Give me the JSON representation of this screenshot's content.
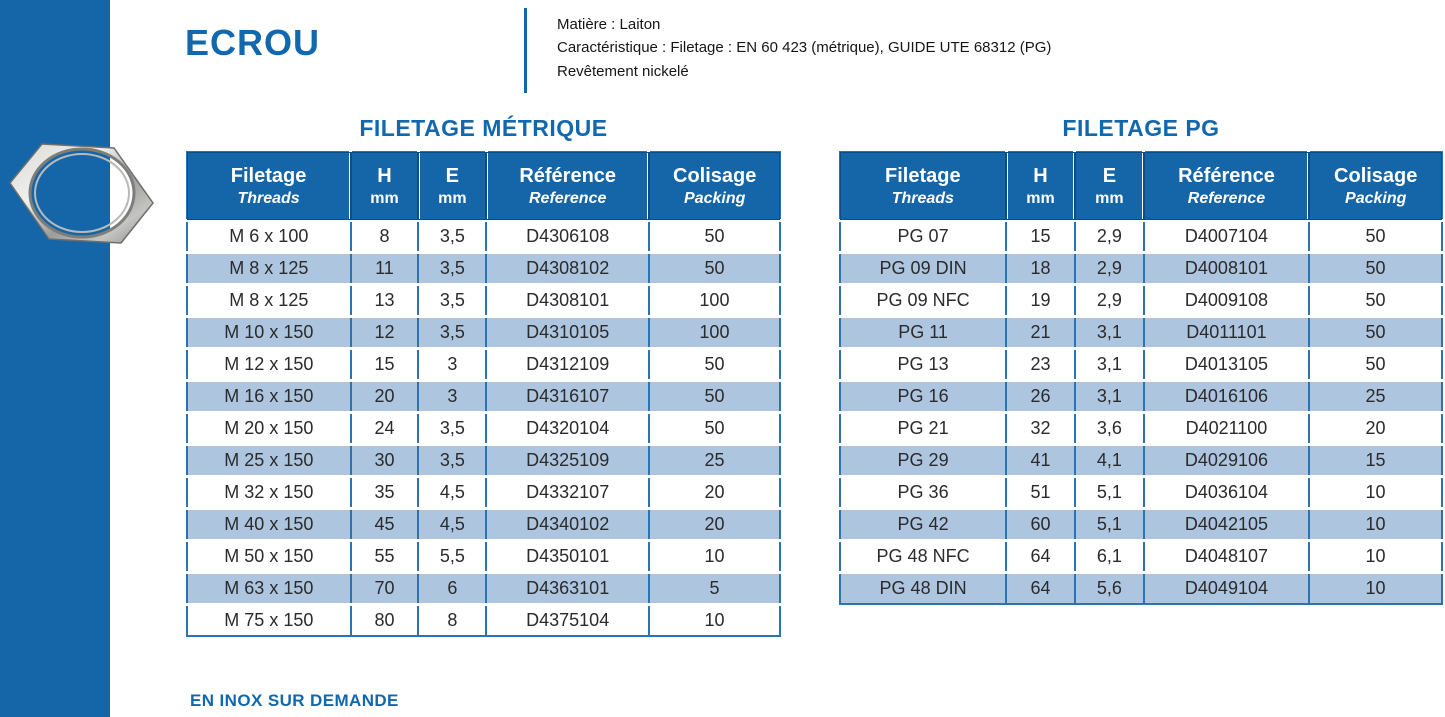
{
  "page": {
    "title": "ECROU",
    "info_lines": {
      "l1": "Matière : Laiton",
      "l2": "Caractéristique : Filetage : EN 60 423 (métrique), GUIDE UTE 68312 (PG)",
      "l3": "Revêtement nickelé"
    },
    "footnote": "EN INOX SUR DEMANDE"
  },
  "colors": {
    "brand_blue": "#1565a9",
    "stripe_blue": "#aec5e0",
    "cell_border_blue": "#2a74b4"
  },
  "icons": {
    "nut_photo": "hex-nut-photo"
  },
  "metric_table": {
    "title": "FILETAGE MÉTRIQUE",
    "headers": {
      "c1a": "Filetage",
      "c1b": "Threads",
      "c2a": "H",
      "c2b": "mm",
      "c3a": "E",
      "c3b": "mm",
      "c4a": "Référence",
      "c4b": "Reference",
      "c5a": "Colisage",
      "c5b": "Packing"
    },
    "rows": [
      [
        "M 6 x 100",
        "8",
        "3,5",
        "D4306108",
        "50"
      ],
      [
        "M 8 x 125",
        "11",
        "3,5",
        "D4308102",
        "50"
      ],
      [
        "M 8 x 125",
        "13",
        "3,5",
        "D4308101",
        "100"
      ],
      [
        "M 10 x 150",
        "12",
        "3,5",
        "D4310105",
        "100"
      ],
      [
        "M 12 x 150",
        "15",
        "3",
        "D4312109",
        "50"
      ],
      [
        "M 16 x 150",
        "20",
        "3",
        "D4316107",
        "50"
      ],
      [
        "M 20 x 150",
        "24",
        "3,5",
        "D4320104",
        "50"
      ],
      [
        "M 25 x 150",
        "30",
        "3,5",
        "D4325109",
        "25"
      ],
      [
        "M 32 x 150",
        "35",
        "4,5",
        "D4332107",
        "20"
      ],
      [
        "M 40 x 150",
        "45",
        "4,5",
        "D4340102",
        "20"
      ],
      [
        "M 50 x 150",
        "55",
        "5,5",
        "D4350101",
        "10"
      ],
      [
        "M 63 x 150",
        "70",
        "6",
        "D4363101",
        "5"
      ],
      [
        "M 75 x 150",
        "80",
        "8",
        "D4375104",
        "10"
      ]
    ]
  },
  "pg_table": {
    "title": "FILETAGE PG",
    "headers": {
      "c1a": "Filetage",
      "c1b": "Threads",
      "c2a": "H",
      "c2b": "mm",
      "c3a": "E",
      "c3b": "mm",
      "c4a": "Référence",
      "c4b": "Reference",
      "c5a": "Colisage",
      "c5b": "Packing"
    },
    "rows": [
      [
        "PG 07",
        "15",
        "2,9",
        "D4007104",
        "50"
      ],
      [
        "PG 09 DIN",
        "18",
        "2,9",
        "D4008101",
        "50"
      ],
      [
        "PG 09 NFC",
        "19",
        "2,9",
        "D4009108",
        "50"
      ],
      [
        "PG 11",
        "21",
        "3,1",
        "D4011101",
        "50"
      ],
      [
        "PG 13",
        "23",
        "3,1",
        "D4013105",
        "50"
      ],
      [
        "PG 16",
        "26",
        "3,1",
        "D4016106",
        "25"
      ],
      [
        "PG 21",
        "32",
        "3,6",
        "D4021100",
        "20"
      ],
      [
        "PG 29",
        "41",
        "4,1",
        "D4029106",
        "15"
      ],
      [
        "PG 36",
        "51",
        "5,1",
        "D4036104",
        "10"
      ],
      [
        "PG 42",
        "60",
        "5,1",
        "D4042105",
        "10"
      ],
      [
        "PG 48 NFC",
        "64",
        "6,1",
        "D4048107",
        "10"
      ],
      [
        "PG 48 DIN",
        "64",
        "5,6",
        "D4049104",
        "10"
      ]
    ]
  }
}
